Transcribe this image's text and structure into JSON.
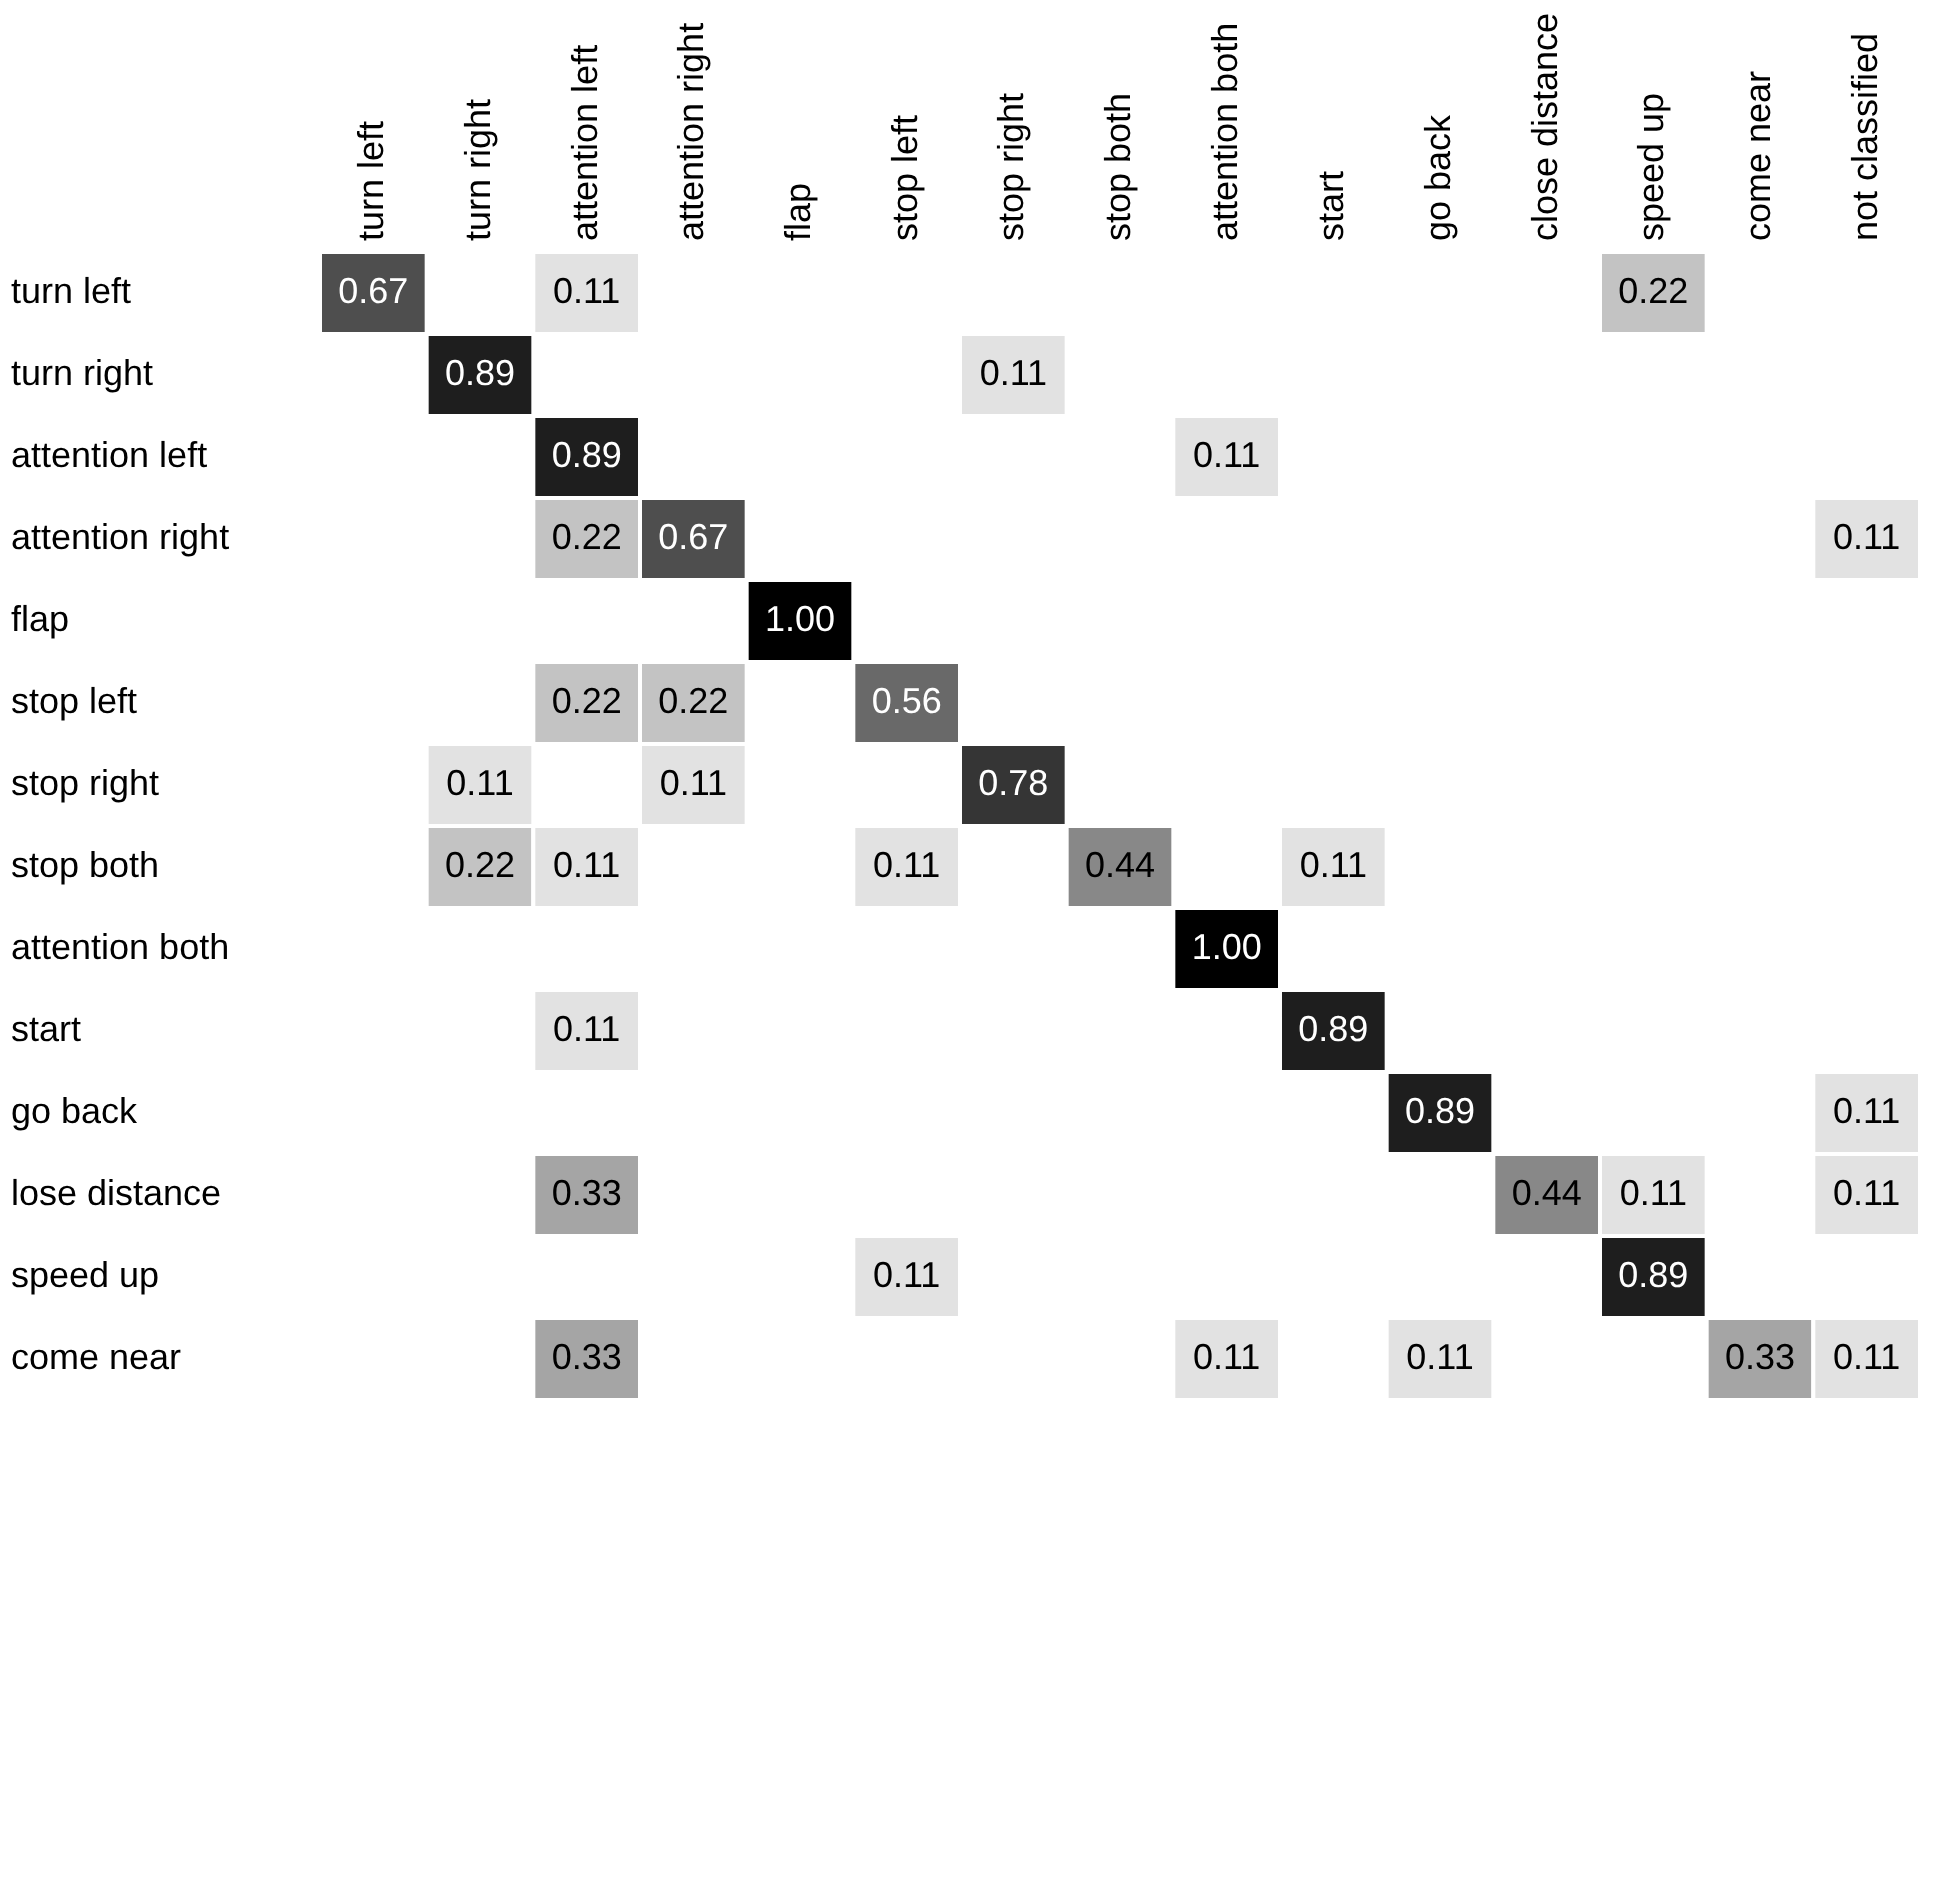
{
  "chart_data": {
    "type": "heatmap",
    "categories": [
      "turn left",
      "turn right",
      "attention left",
      "attention right",
      "flap",
      "stop left",
      "stop right",
      "stop both",
      "attention both",
      "start",
      "go back",
      "close distance",
      "speed up",
      "come near",
      "not classified"
    ],
    "y_categories": [
      "turn left",
      "turn right",
      "attention left",
      "attention right",
      "flap",
      "stop left",
      "stop right",
      "stop both",
      "attention both",
      "start",
      "go back",
      "lose distance",
      "speed up",
      "come near"
    ],
    "cells": [
      [
        0.67,
        null,
        0.11,
        null,
        null,
        null,
        null,
        null,
        null,
        null,
        null,
        null,
        0.22,
        null,
        null
      ],
      [
        null,
        0.89,
        null,
        null,
        null,
        null,
        0.11,
        null,
        null,
        null,
        null,
        null,
        null,
        null,
        null
      ],
      [
        null,
        null,
        0.89,
        null,
        null,
        null,
        null,
        null,
        0.11,
        null,
        null,
        null,
        null,
        null,
        null
      ],
      [
        null,
        null,
        0.22,
        0.67,
        null,
        null,
        null,
        null,
        null,
        null,
        null,
        null,
        null,
        null,
        0.11
      ],
      [
        null,
        null,
        null,
        null,
        1.0,
        null,
        null,
        null,
        null,
        null,
        null,
        null,
        null,
        null,
        null
      ],
      [
        null,
        null,
        0.22,
        0.22,
        null,
        0.56,
        null,
        null,
        null,
        null,
        null,
        null,
        null,
        null,
        null
      ],
      [
        null,
        0.11,
        null,
        0.11,
        null,
        null,
        0.78,
        null,
        null,
        null,
        null,
        null,
        null,
        null,
        null
      ],
      [
        null,
        0.22,
        0.11,
        null,
        null,
        0.11,
        null,
        0.44,
        null,
        0.11,
        null,
        null,
        null,
        null,
        null
      ],
      [
        null,
        null,
        null,
        null,
        null,
        null,
        null,
        null,
        1.0,
        null,
        null,
        null,
        null,
        null,
        null
      ],
      [
        null,
        null,
        0.11,
        null,
        null,
        null,
        null,
        null,
        null,
        0.89,
        null,
        null,
        null,
        null,
        null
      ],
      [
        null,
        null,
        null,
        null,
        null,
        null,
        null,
        null,
        null,
        null,
        0.89,
        null,
        null,
        null,
        0.11
      ],
      [
        null,
        null,
        0.33,
        null,
        null,
        null,
        null,
        null,
        null,
        null,
        null,
        0.44,
        0.11,
        null,
        0.11
      ],
      [
        null,
        null,
        null,
        null,
        null,
        0.11,
        null,
        null,
        null,
        null,
        null,
        null,
        0.89,
        null,
        null
      ],
      [
        null,
        null,
        0.33,
        null,
        null,
        null,
        null,
        null,
        0.11,
        null,
        0.11,
        null,
        null,
        0.33,
        0.11
      ]
    ],
    "cell_labels": [
      [
        "0.67",
        null,
        "0.11",
        null,
        null,
        null,
        null,
        null,
        null,
        null,
        null,
        null,
        "0.22",
        null,
        null
      ],
      [
        null,
        "0.89",
        null,
        null,
        null,
        null,
        "0.11",
        null,
        null,
        null,
        null,
        null,
        null,
        null,
        null
      ],
      [
        null,
        null,
        "0.89",
        null,
        null,
        null,
        null,
        null,
        "0.11",
        null,
        null,
        null,
        null,
        null,
        null
      ],
      [
        null,
        null,
        "0.22",
        "0.67",
        null,
        null,
        null,
        null,
        null,
        null,
        null,
        null,
        null,
        null,
        "0.11"
      ],
      [
        null,
        null,
        null,
        null,
        "1.00",
        null,
        null,
        null,
        null,
        null,
        null,
        null,
        null,
        null,
        null
      ],
      [
        null,
        null,
        "0.22",
        "0.22",
        null,
        "0.56",
        null,
        null,
        null,
        null,
        null,
        null,
        null,
        null,
        null
      ],
      [
        null,
        "0.11",
        null,
        "0.11",
        null,
        null,
        "0.78",
        null,
        null,
        null,
        null,
        null,
        null,
        null,
        null
      ],
      [
        null,
        "0.22",
        "0.11",
        null,
        null,
        "0.11",
        null,
        "0.44",
        null,
        "0.11",
        null,
        null,
        null,
        null,
        null
      ],
      [
        null,
        null,
        null,
        null,
        null,
        null,
        null,
        null,
        "1.00",
        null,
        null,
        null,
        null,
        null,
        null
      ],
      [
        null,
        null,
        "0.11",
        null,
        null,
        null,
        null,
        null,
        null,
        "0.89",
        null,
        null,
        null,
        null,
        null
      ],
      [
        null,
        null,
        null,
        null,
        null,
        null,
        null,
        null,
        null,
        null,
        "0.89",
        null,
        null,
        null,
        "0.11"
      ],
      [
        null,
        null,
        "0.33",
        null,
        null,
        null,
        null,
        null,
        null,
        null,
        null,
        "0.44",
        "0.11",
        null,
        "0.11"
      ],
      [
        null,
        null,
        null,
        null,
        null,
        "0.11",
        null,
        null,
        null,
        null,
        null,
        null,
        "0.89",
        null,
        null
      ],
      [
        null,
        null,
        "0.33",
        null,
        null,
        null,
        null,
        null,
        "0.11",
        null,
        "0.11",
        null,
        null,
        "0.33",
        "0.11"
      ]
    ]
  }
}
